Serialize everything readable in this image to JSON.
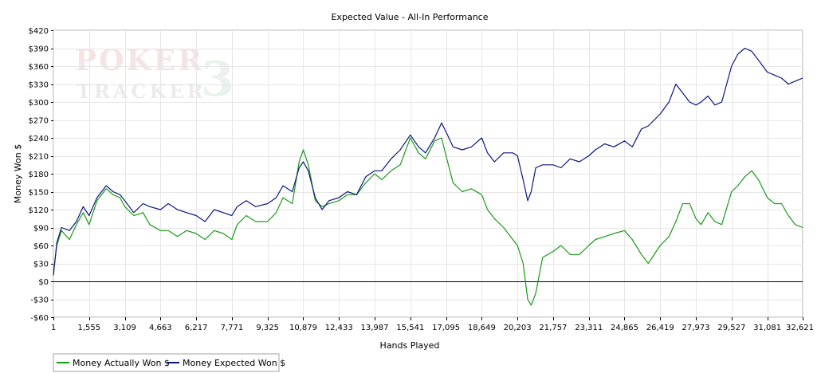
{
  "chart_data": {
    "type": "line",
    "title": "Expected Value - All-In Performance",
    "xlabel": "Hands Played",
    "ylabel": "Money Won $",
    "xlim": [
      1,
      32621
    ],
    "ylim": [
      -60,
      420
    ],
    "x_ticks": [
      1,
      1555,
      3109,
      4663,
      6217,
      7771,
      9325,
      10879,
      12433,
      13987,
      15541,
      17095,
      18649,
      20203,
      21757,
      23311,
      24865,
      26419,
      27973,
      29527,
      31081,
      32621
    ],
    "x_tick_labels": [
      "1",
      "1,555",
      "3,109",
      "4,663",
      "6,217",
      "7,771",
      "9,325",
      "10,879",
      "12,433",
      "13,987",
      "15,541",
      "17,095",
      "18,649",
      "20,203",
      "21,757",
      "23,311",
      "24,865",
      "26,419",
      "27,973",
      "29,527",
      "31,081",
      "32,621"
    ],
    "y_ticks": [
      -60,
      -30,
      0,
      30,
      60,
      90,
      120,
      150,
      180,
      210,
      240,
      270,
      300,
      330,
      360,
      390,
      420
    ],
    "y_tick_labels": [
      "-$60",
      "-$30",
      "$0",
      "$30",
      "$60",
      "$90",
      "$120",
      "$150",
      "$180",
      "$210",
      "$240",
      "$270",
      "$300",
      "$330",
      "$360",
      "$390",
      "$420"
    ],
    "grid": true,
    "legend_position": "bottom-left",
    "watermark": [
      "POKER",
      "3",
      "TRACKER"
    ],
    "series": [
      {
        "name": "Money Actually Won $",
        "color": "#1a9a1a",
        "x": [
          1,
          150,
          350,
          700,
          1000,
          1300,
          1555,
          1900,
          2300,
          2600,
          2900,
          3109,
          3500,
          3900,
          4200,
          4663,
          5000,
          5400,
          5800,
          6217,
          6600,
          7000,
          7400,
          7771,
          8000,
          8400,
          8800,
          9325,
          9700,
          10000,
          10400,
          10700,
          10879,
          11100,
          11400,
          11700,
          12000,
          12433,
          12800,
          13200,
          13600,
          13987,
          14300,
          14700,
          15100,
          15541,
          15900,
          16200,
          16600,
          16900,
          17095,
          17400,
          17800,
          18200,
          18649,
          18900,
          19200,
          19600,
          20000,
          20203,
          20450,
          20650,
          20800,
          21000,
          21300,
          21757,
          22100,
          22500,
          22900,
          23311,
          23600,
          24000,
          24400,
          24865,
          25200,
          25600,
          25900,
          26419,
          26800,
          27100,
          27400,
          27700,
          27973,
          28200,
          28500,
          28800,
          29100,
          29527,
          29800,
          30100,
          30400,
          30700,
          31081,
          31400,
          31700,
          32000,
          32300,
          32621
        ],
        "values": [
          15,
          60,
          85,
          70,
          95,
          115,
          95,
          135,
          155,
          145,
          140,
          125,
          110,
          115,
          95,
          85,
          85,
          75,
          85,
          80,
          70,
          85,
          80,
          70,
          95,
          110,
          100,
          100,
          115,
          140,
          130,
          200,
          220,
          195,
          135,
          125,
          130,
          135,
          145,
          145,
          165,
          180,
          170,
          185,
          195,
          240,
          215,
          205,
          235,
          240,
          210,
          165,
          150,
          155,
          145,
          120,
          105,
          90,
          70,
          60,
          30,
          -30,
          -40,
          -20,
          40,
          50,
          60,
          45,
          45,
          60,
          70,
          75,
          80,
          85,
          70,
          45,
          30,
          60,
          75,
          100,
          130,
          130,
          105,
          95,
          115,
          100,
          95,
          150,
          160,
          175,
          185,
          170,
          140,
          130,
          130,
          110,
          95,
          90
        ]
      },
      {
        "name": "Money Expected Won $",
        "color": "#0d1580",
        "x": [
          1,
          150,
          350,
          700,
          1000,
          1300,
          1555,
          1900,
          2300,
          2600,
          2900,
          3109,
          3500,
          3900,
          4200,
          4663,
          5000,
          5400,
          5800,
          6217,
          6600,
          7000,
          7400,
          7771,
          8000,
          8400,
          8800,
          9325,
          9700,
          10000,
          10400,
          10700,
          10879,
          11100,
          11400,
          11700,
          12000,
          12433,
          12800,
          13200,
          13600,
          13987,
          14300,
          14700,
          15100,
          15541,
          15900,
          16200,
          16600,
          16900,
          17095,
          17400,
          17800,
          18200,
          18649,
          18900,
          19200,
          19600,
          20000,
          20203,
          20450,
          20650,
          20800,
          21000,
          21300,
          21757,
          22100,
          22500,
          22900,
          23311,
          23600,
          24000,
          24400,
          24865,
          25200,
          25600,
          25900,
          26419,
          26800,
          27100,
          27400,
          27700,
          27973,
          28200,
          28500,
          28800,
          29100,
          29527,
          29800,
          30100,
          30400,
          30700,
          31081,
          31400,
          31700,
          32000,
          32300,
          32621
        ],
        "values": [
          10,
          65,
          90,
          85,
          100,
          125,
          110,
          140,
          160,
          150,
          145,
          135,
          115,
          130,
          125,
          120,
          130,
          120,
          115,
          110,
          100,
          120,
          115,
          110,
          125,
          135,
          125,
          130,
          140,
          160,
          150,
          190,
          200,
          185,
          140,
          120,
          135,
          140,
          150,
          145,
          175,
          185,
          185,
          205,
          220,
          245,
          225,
          215,
          240,
          265,
          250,
          225,
          220,
          225,
          240,
          215,
          200,
          215,
          215,
          210,
          170,
          135,
          150,
          190,
          195,
          195,
          190,
          205,
          200,
          210,
          220,
          230,
          225,
          235,
          225,
          255,
          260,
          280,
          300,
          330,
          315,
          300,
          295,
          300,
          310,
          295,
          300,
          360,
          380,
          390,
          385,
          370,
          350,
          345,
          340,
          330,
          335,
          340
        ]
      }
    ]
  }
}
